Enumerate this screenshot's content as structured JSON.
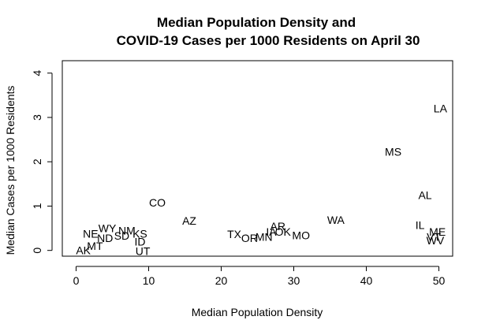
{
  "chart_data": {
    "type": "scatter",
    "title": [
      "Median Population Density and",
      "COVID-19 Cases per 1000 Residents on April 30"
    ],
    "xlabel": "Median Population Density",
    "ylabel": "Median Cases per 1000 Residents",
    "xlim": [
      -1.9,
      51.9
    ],
    "ylim": [
      -0.13,
      4.28
    ],
    "xticks": [
      0,
      10,
      20,
      30,
      40,
      50
    ],
    "yticks": [
      0,
      1,
      2,
      3,
      4
    ],
    "grid": false,
    "points": [
      {
        "label": "AK",
        "x": 1.0,
        "y": 0.0
      },
      {
        "label": "MT",
        "x": 2.6,
        "y": 0.1
      },
      {
        "label": "ND",
        "x": 4.0,
        "y": 0.28
      },
      {
        "label": "NE",
        "x": 2.0,
        "y": 0.38
      },
      {
        "label": "WY",
        "x": 4.3,
        "y": 0.5
      },
      {
        "label": "NM",
        "x": 7.0,
        "y": 0.45
      },
      {
        "label": "SD",
        "x": 6.3,
        "y": 0.33
      },
      {
        "label": "KS",
        "x": 8.8,
        "y": 0.38
      },
      {
        "label": "ID",
        "x": 8.8,
        "y": 0.2
      },
      {
        "label": "UT",
        "x": 9.2,
        "y": -0.01
      },
      {
        "label": "CO",
        "x": 11.2,
        "y": 1.08
      },
      {
        "label": "AZ",
        "x": 15.6,
        "y": 0.67
      },
      {
        "label": "TX",
        "x": 21.8,
        "y": 0.37
      },
      {
        "label": "OR",
        "x": 23.9,
        "y": 0.28
      },
      {
        "label": "MN",
        "x": 25.9,
        "y": 0.31
      },
      {
        "label": "AR",
        "x": 27.8,
        "y": 0.55
      },
      {
        "label": "OK",
        "x": 28.5,
        "y": 0.42
      },
      {
        "label": "IA",
        "x": 26.9,
        "y": 0.42
      },
      {
        "label": "MO",
        "x": 31.0,
        "y": 0.34
      },
      {
        "label": "WA",
        "x": 35.8,
        "y": 0.69
      },
      {
        "label": "MS",
        "x": 43.7,
        "y": 2.23
      },
      {
        "label": "LA",
        "x": 50.2,
        "y": 3.2
      },
      {
        "label": "AL",
        "x": 48.1,
        "y": 1.25
      },
      {
        "label": "IL",
        "x": 47.4,
        "y": 0.57
      },
      {
        "label": "ME",
        "x": 49.8,
        "y": 0.42
      },
      {
        "label": "VT",
        "x": 49.3,
        "y": 0.31
      },
      {
        "label": "WV",
        "x": 49.5,
        "y": 0.23
      }
    ]
  }
}
